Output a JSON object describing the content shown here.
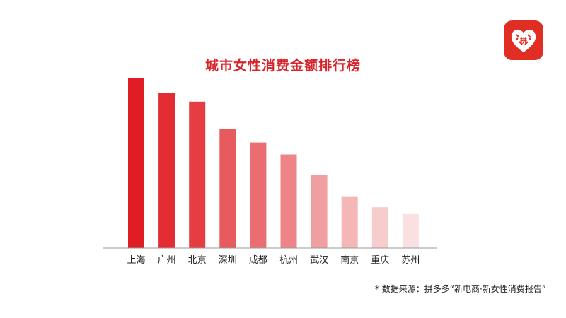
{
  "chart_data": {
    "type": "bar",
    "title": "城市女性消费金额排行榜",
    "categories": [
      "上海",
      "广州",
      "北京",
      "深圳",
      "成都",
      "杭州",
      "武汉",
      "南京",
      "重庆",
      "苏州"
    ],
    "values": [
      10,
      9.1,
      8.6,
      7.0,
      6.2,
      5.5,
      4.3,
      3.0,
      2.4,
      2.0
    ],
    "ylim": [
      0,
      10.5
    ],
    "grid": false,
    "legend": "none",
    "bar_colors": [
      "#e01c24",
      "#e32d33",
      "#e53d42",
      "#e75a5d",
      "#ea6e71",
      "#ed8588",
      "#f09fa1",
      "#f4b6b7",
      "#f7cccd",
      "#fae1e1"
    ]
  },
  "source_note": "* 数据来源：拼多多“新电商·新女性消费报告”",
  "logo": {
    "name": "拼多多",
    "glyph": "拼",
    "bg_color": "#e02e24"
  }
}
